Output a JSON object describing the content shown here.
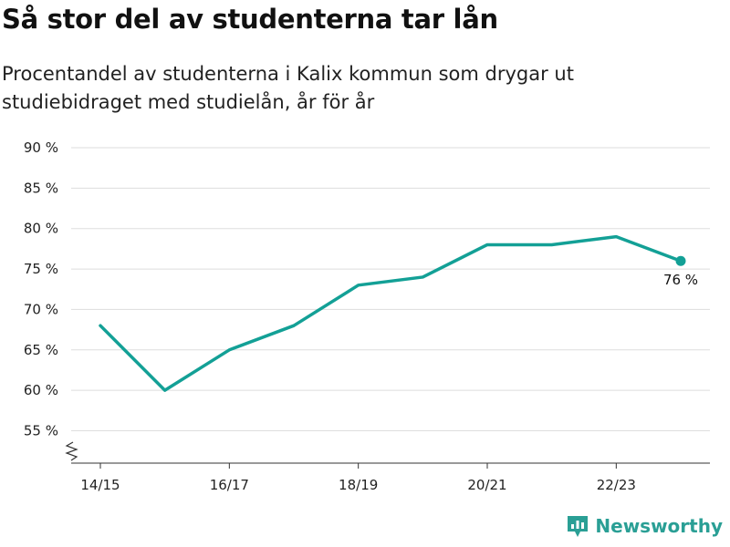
{
  "title": "Så stor del av studenterna tar lån",
  "subtitle": "Procentandel av studenterna i Kalix kommun som drygar ut studiebidraget med studielån, år för år",
  "brand": "Newsworthy",
  "colors": {
    "line": "#13a096",
    "grid": "#dddddd",
    "axis": "#333333",
    "brand": "#2a9f95"
  },
  "chart_data": {
    "type": "line",
    "x": [
      "14/15",
      "15/16",
      "16/17",
      "17/18",
      "18/19",
      "19/20",
      "20/21",
      "21/22",
      "22/23",
      "23/24"
    ],
    "x_tick_labels": [
      "14/15",
      "16/17",
      "18/19",
      "20/21",
      "22/23"
    ],
    "series": [
      {
        "values": [
          68,
          60,
          65,
          68,
          73,
          74,
          78,
          78,
          79,
          76
        ]
      }
    ],
    "y_ticks": [
      55,
      60,
      65,
      70,
      75,
      80,
      85,
      90
    ],
    "y_tick_suffix": " %",
    "ylim": [
      51,
      90
    ],
    "grid": true,
    "axis_break": true,
    "end_label": "76 %"
  }
}
